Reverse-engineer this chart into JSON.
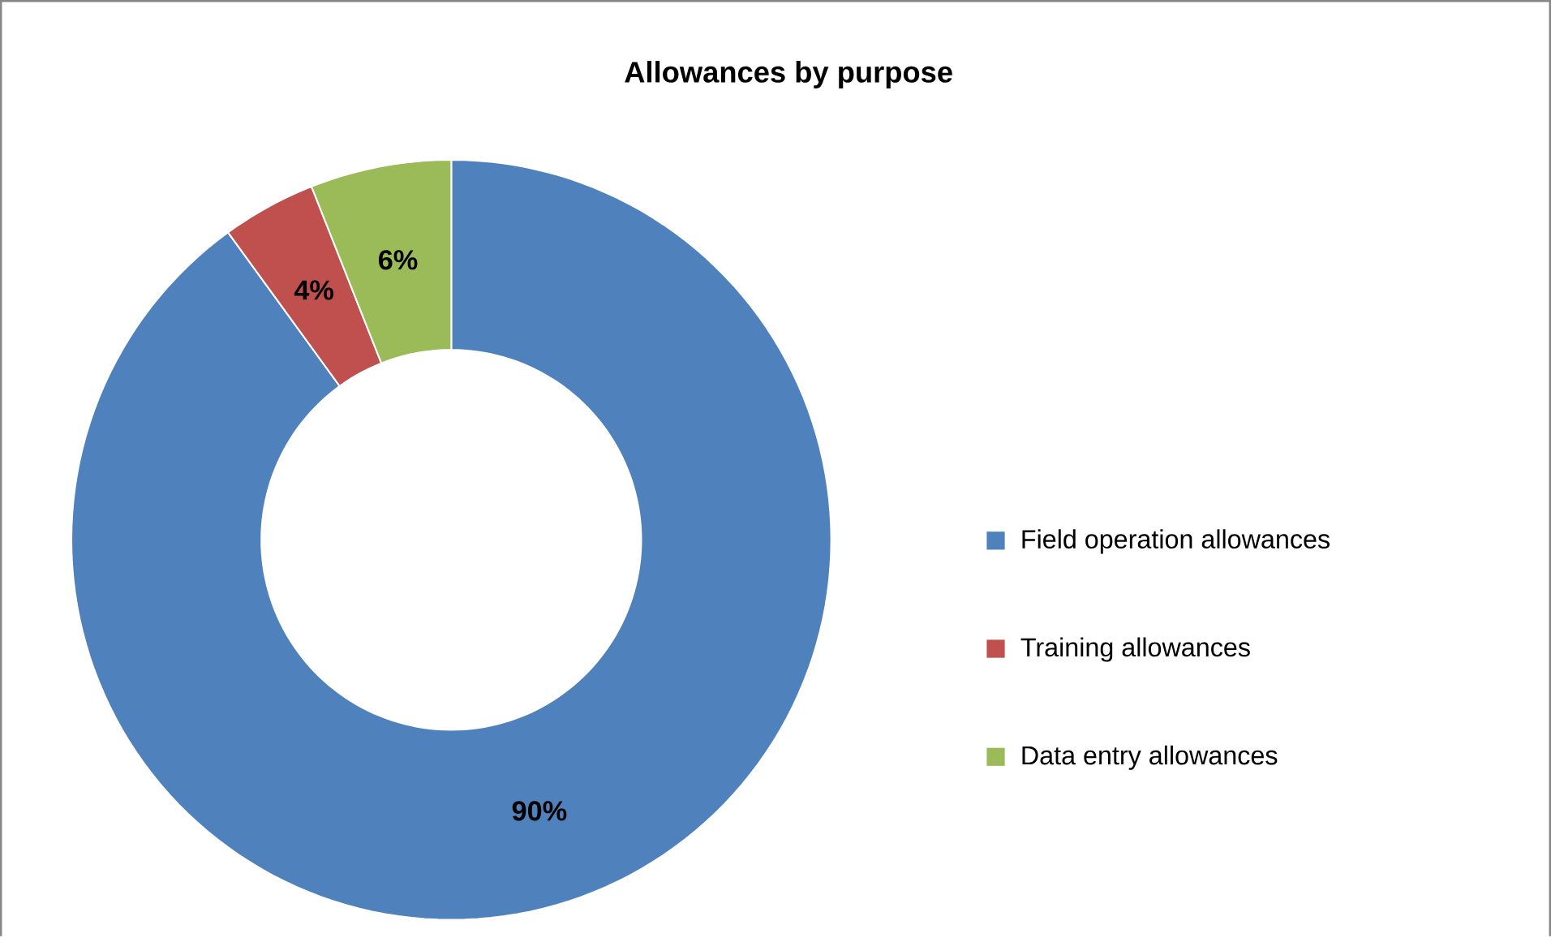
{
  "chart_data": {
    "type": "donut",
    "title": "Allowances by purpose",
    "categories": [
      "Field operation allowances",
      "Training allowances",
      "Data entry allowances"
    ],
    "values": [
      90,
      4,
      6
    ],
    "colors": [
      "#4f81bd",
      "#c0504d",
      "#9bbb59"
    ],
    "value_labels": [
      "90%",
      "4%",
      "6%"
    ],
    "legend": "right"
  }
}
